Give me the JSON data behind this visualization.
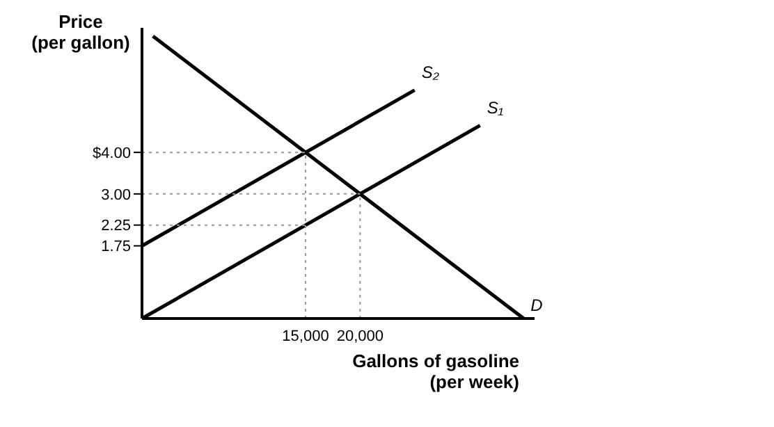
{
  "chart_data": {
    "type": "line",
    "xlabel": "Gallons of gasoline\n(per week)",
    "ylabel": "Price\n(per gallon)",
    "marker": "none",
    "grid": false,
    "legend": false,
    "xlim": [
      0,
      36000
    ],
    "ylim": [
      0,
      7
    ],
    "xticks": [
      {
        "value": 15000,
        "label": "15,000"
      },
      {
        "value": 20000,
        "label": "20,000"
      }
    ],
    "yticks": [
      {
        "value": 1.75,
        "label": "1.75"
      },
      {
        "value": 2.25,
        "label": "2.25"
      },
      {
        "value": 3,
        "label": "3.00"
      },
      {
        "value": 4,
        "label": "$4.00"
      }
    ],
    "series": [
      {
        "color": "#000000",
        "x": [
          1000,
          35000
        ],
        "values": [
          6.8,
          0
        ]
      },
      {
        "color": "#000000",
        "x": [
          0,
          25000
        ],
        "values": [
          1.75,
          5.5
        ]
      },
      {
        "color": "#000000",
        "x": [
          0,
          31000
        ],
        "values": [
          0,
          4.65
        ]
      },
      {
        "color": "#999999",
        "line_style": "dotted",
        "x": [
          0,
          15000
        ],
        "values": [
          4,
          4
        ]
      },
      {
        "color": "#999999",
        "line_style": "dotted",
        "x": [
          0,
          20000
        ],
        "values": [
          3,
          3
        ]
      },
      {
        "color": "#999999",
        "line_style": "dotted",
        "x": [
          0,
          15000
        ],
        "values": [
          2.25,
          2.25
        ]
      },
      {
        "color": "#999999",
        "line_style": "dotted",
        "x": [
          15000,
          15000
        ],
        "values": [
          0,
          4
        ]
      },
      {
        "color": "#999999",
        "line_style": "dotted",
        "x": [
          20000,
          20000
        ],
        "values": [
          0,
          3
        ]
      }
    ],
    "annotations": [
      {
        "text": "D",
        "x": 35000,
        "y": 0
      },
      {
        "text": "S₂",
        "x": 25000,
        "y": 5.6
      },
      {
        "text": "S₁",
        "x": 31000,
        "y": 4.75
      }
    ]
  }
}
